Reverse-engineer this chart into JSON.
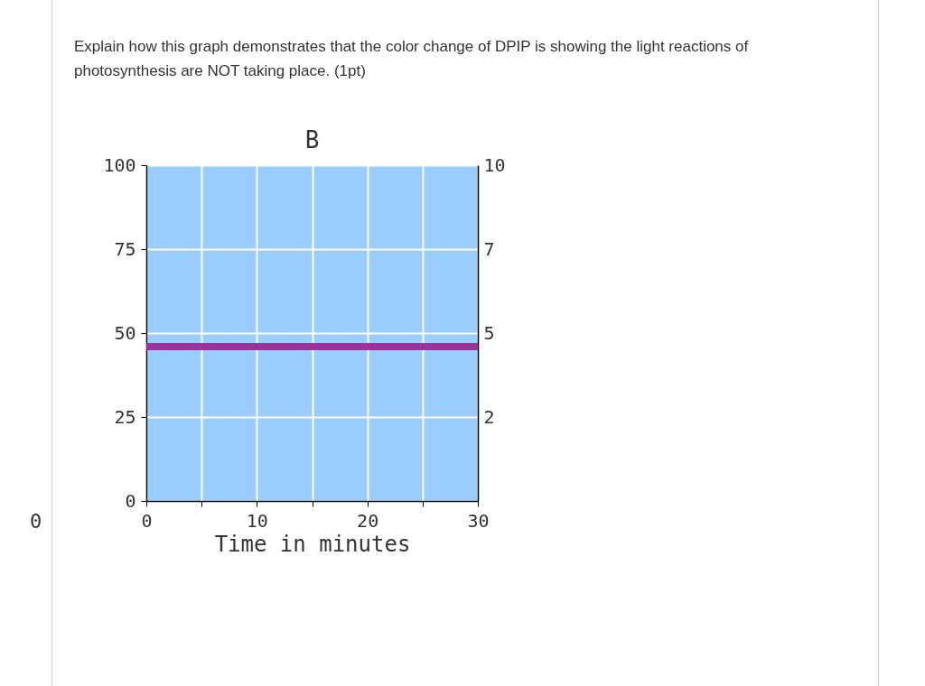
{
  "chart_data": {
    "type": "line",
    "title": "Explain how this graph demonstrates that the color change of DPIP is showing the light reactions of photosynthesis are NOT taking place. (1pt)",
    "subtitle": "B",
    "xlabel": "Time in minutes",
    "x": [
      0,
      30
    ],
    "series": [
      {
        "color": "#993399",
        "values": [
          46,
          46
        ]
      }
    ],
    "xlim": [
      0,
      30
    ],
    "xticks": [
      0,
      {
        "value": 5,
        "label": null
      },
      10,
      {
        "value": 15,
        "label": null
      },
      20,
      {
        "value": 25,
        "label": null
      },
      30
    ],
    "ylim": [
      0,
      100
    ],
    "yticks": [
      0,
      25,
      50,
      75,
      100
    ],
    "y2lim": [
      0,
      10
    ],
    "y2ticks": [
      {
        "value": 2.5,
        "label": "2"
      },
      5,
      {
        "value": 7.5,
        "label": "7"
      },
      10
    ],
    "annotations": [
      "0"
    ],
    "grid": true
  }
}
